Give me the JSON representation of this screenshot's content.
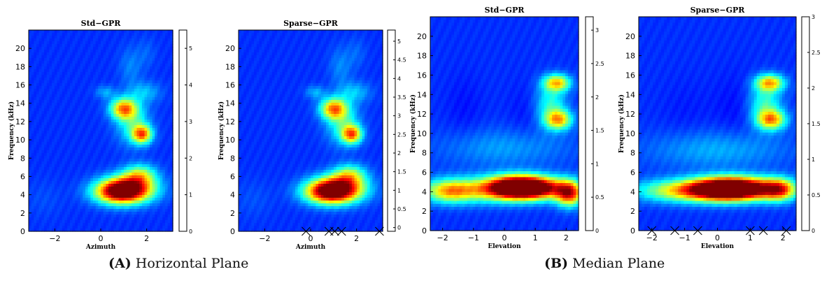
{
  "chart_data": [
    {
      "type": "heatmap",
      "title": "Std−GPR",
      "xlabel": "Azimuth",
      "ylabel": "Frequency (kHz)",
      "xlim": [
        -3.14,
        3.14
      ],
      "ylim": [
        0,
        22
      ],
      "xticks": [
        -2,
        0,
        2
      ],
      "yticks": [
        0,
        2,
        4,
        6,
        8,
        10,
        12,
        14,
        16,
        18,
        20
      ],
      "colorbar": {
        "range": [
          0,
          5.5
        ],
        "ticks": [
          0,
          1,
          2,
          3,
          4,
          5
        ]
      },
      "colormap": "jet",
      "sample_markers_x": [],
      "hotspots": [
        {
          "x": 1.3,
          "y": 4.6,
          "value": 5.0,
          "sx": 0.75,
          "sy": 1.0
        },
        {
          "x": 0.6,
          "y": 4.3,
          "value": 3.8,
          "sx": 0.7,
          "sy": 0.9
        },
        {
          "x": 1.7,
          "y": 6.2,
          "value": 2.8,
          "sx": 0.5,
          "sy": 0.8
        },
        {
          "x": 1.0,
          "y": 13.4,
          "value": 3.9,
          "sx": 0.4,
          "sy": 0.8
        },
        {
          "x": 1.8,
          "y": 10.6,
          "value": 4.0,
          "sx": 0.3,
          "sy": 0.7
        },
        {
          "x": 1.4,
          "y": 11.8,
          "value": 2.2,
          "sx": 0.5,
          "sy": 1.6
        },
        {
          "x": 0.2,
          "y": 15.2,
          "value": 1.6,
          "sx": 0.3,
          "sy": 0.5
        },
        {
          "x": 1.9,
          "y": 15.2,
          "value": 1.7,
          "sx": 0.5,
          "sy": 0.8
        },
        {
          "x": 1.3,
          "y": 18.0,
          "value": 1.4,
          "sx": 0.35,
          "sy": 1.5
        },
        {
          "x": 2.0,
          "y": 19.5,
          "value": 1.2,
          "sx": 0.3,
          "sy": 1.2
        },
        {
          "x": -2.5,
          "y": 3.5,
          "value": 1.1,
          "sx": 0.6,
          "sy": 1.5
        }
      ]
    },
    {
      "type": "heatmap",
      "title": "Sparse−GPR",
      "xlabel": "Azimuth",
      "ylabel": "Frequency (kHz)",
      "xlim": [
        -3.14,
        3.14
      ],
      "ylim": [
        0,
        22
      ],
      "xticks": [
        -2,
        0,
        2
      ],
      "yticks": [
        0,
        2,
        4,
        6,
        8,
        10,
        12,
        14,
        16,
        18,
        20
      ],
      "colorbar": {
        "range": [
          -0.1,
          5.3
        ],
        "ticks": [
          0,
          0.5,
          1,
          1.5,
          2,
          2.5,
          3,
          3.5,
          4,
          4.5,
          5
        ]
      },
      "colormap": "jet",
      "sample_markers_x": [
        -0.2,
        0.8,
        1.05,
        1.35,
        3.0
      ],
      "hotspots": [
        {
          "x": 1.3,
          "y": 4.6,
          "value": 4.8,
          "sx": 0.75,
          "sy": 1.0
        },
        {
          "x": 0.6,
          "y": 4.3,
          "value": 3.6,
          "sx": 0.7,
          "sy": 0.9
        },
        {
          "x": 1.7,
          "y": 6.2,
          "value": 2.6,
          "sx": 0.5,
          "sy": 0.8
        },
        {
          "x": 1.0,
          "y": 13.4,
          "value": 3.7,
          "sx": 0.4,
          "sy": 0.8
        },
        {
          "x": 1.8,
          "y": 10.6,
          "value": 3.8,
          "sx": 0.3,
          "sy": 0.7
        },
        {
          "x": 1.4,
          "y": 11.8,
          "value": 2.1,
          "sx": 0.5,
          "sy": 1.6
        },
        {
          "x": 0.2,
          "y": 15.2,
          "value": 1.5,
          "sx": 0.3,
          "sy": 0.5
        },
        {
          "x": 1.9,
          "y": 15.2,
          "value": 1.6,
          "sx": 0.5,
          "sy": 0.8
        },
        {
          "x": 1.3,
          "y": 18.0,
          "value": 1.3,
          "sx": 0.35,
          "sy": 1.5
        },
        {
          "x": 2.0,
          "y": 19.5,
          "value": 1.1,
          "sx": 0.3,
          "sy": 1.2
        },
        {
          "x": -2.5,
          "y": 3.5,
          "value": 1.0,
          "sx": 0.6,
          "sy": 1.5
        }
      ]
    },
    {
      "type": "heatmap",
      "title": "Std−GPR",
      "xlabel": "Elevation",
      "ylabel": "Frequency (kHz)",
      "xlim": [
        -2.4,
        2.4
      ],
      "ylim": [
        0,
        22
      ],
      "xticks": [
        -2,
        -1,
        0,
        1,
        2
      ],
      "yticks": [
        0,
        2,
        4,
        6,
        8,
        10,
        12,
        14,
        16,
        18,
        20
      ],
      "colorbar": {
        "range": [
          0,
          3.2
        ],
        "ticks": [
          0,
          0.5,
          1,
          1.5,
          2,
          2.5,
          3
        ]
      },
      "colormap": "jet",
      "sample_markers_x": [],
      "hotspots": [
        {
          "x": 1.0,
          "y": 4.4,
          "value": 3.0,
          "sx": 0.7,
          "sy": 0.8
        },
        {
          "x": 0.3,
          "y": 4.5,
          "value": 2.6,
          "sx": 0.6,
          "sy": 0.8
        },
        {
          "x": -0.8,
          "y": 4.2,
          "value": 1.9,
          "sx": 1.2,
          "sy": 0.9
        },
        {
          "x": 2.1,
          "y": 3.8,
          "value": 2.6,
          "sx": 0.3,
          "sy": 0.9
        },
        {
          "x": -1.8,
          "y": 4.0,
          "value": 1.5,
          "sx": 0.5,
          "sy": 0.8
        },
        {
          "x": 0.0,
          "y": 8.5,
          "value": 0.9,
          "sx": 1.5,
          "sy": 1.4
        },
        {
          "x": 1.7,
          "y": 15.2,
          "value": 2.1,
          "sx": 0.3,
          "sy": 0.6
        },
        {
          "x": 1.75,
          "y": 11.4,
          "value": 2.1,
          "sx": 0.3,
          "sy": 0.7
        },
        {
          "x": 1.5,
          "y": 13.0,
          "value": 1.3,
          "sx": 0.35,
          "sy": 1.5
        },
        {
          "x": -1.3,
          "y": 12.5,
          "value": 0.45,
          "sx": 0.4,
          "sy": 2.5
        },
        {
          "x": 0.7,
          "y": 12.0,
          "value": 0.45,
          "sx": 0.4,
          "sy": 2.2
        }
      ]
    },
    {
      "type": "heatmap",
      "title": "Sparse−GPR",
      "xlabel": "Elevation",
      "ylabel": "Frequency (kHz)",
      "xlim": [
        -2.4,
        2.4
      ],
      "ylim": [
        0,
        22
      ],
      "xticks": [
        -2,
        -1,
        0,
        1,
        2
      ],
      "yticks": [
        0,
        2,
        4,
        6,
        8,
        10,
        12,
        14,
        16,
        18,
        20
      ],
      "colorbar": {
        "range": [
          0,
          3
        ],
        "ticks": [
          0,
          0.5,
          1,
          1.5,
          2,
          2.5,
          3
        ]
      },
      "colormap": "jet",
      "sample_markers_x": [
        -2.0,
        -1.3,
        -0.6,
        1.0,
        1.4,
        2.1
      ],
      "hotspots": [
        {
          "x": 0.8,
          "y": 4.3,
          "value": 2.9,
          "sx": 0.8,
          "sy": 0.8
        },
        {
          "x": 0.1,
          "y": 4.3,
          "value": 2.3,
          "sx": 0.7,
          "sy": 0.8
        },
        {
          "x": -1.0,
          "y": 4.1,
          "value": 1.9,
          "sx": 1.0,
          "sy": 0.8
        },
        {
          "x": 1.9,
          "y": 4.2,
          "value": 2.0,
          "sx": 0.35,
          "sy": 0.8
        },
        {
          "x": 0.0,
          "y": 8.3,
          "value": 0.9,
          "sx": 1.5,
          "sy": 1.4
        },
        {
          "x": 1.6,
          "y": 15.2,
          "value": 2.0,
          "sx": 0.3,
          "sy": 0.6
        },
        {
          "x": 1.65,
          "y": 11.4,
          "value": 2.0,
          "sx": 0.3,
          "sy": 0.7
        },
        {
          "x": 1.45,
          "y": 13.0,
          "value": 1.3,
          "sx": 0.35,
          "sy": 1.5
        },
        {
          "x": -1.0,
          "y": 12.0,
          "value": 0.45,
          "sx": 0.5,
          "sy": 2.5
        },
        {
          "x": 0.6,
          "y": 12.5,
          "value": 0.4,
          "sx": 0.5,
          "sy": 2.5
        }
      ]
    }
  ],
  "captions": [
    {
      "label": "(A)",
      "text": "Horizontal Plane"
    },
    {
      "label": "(B)",
      "text": "Median Plane"
    }
  ]
}
